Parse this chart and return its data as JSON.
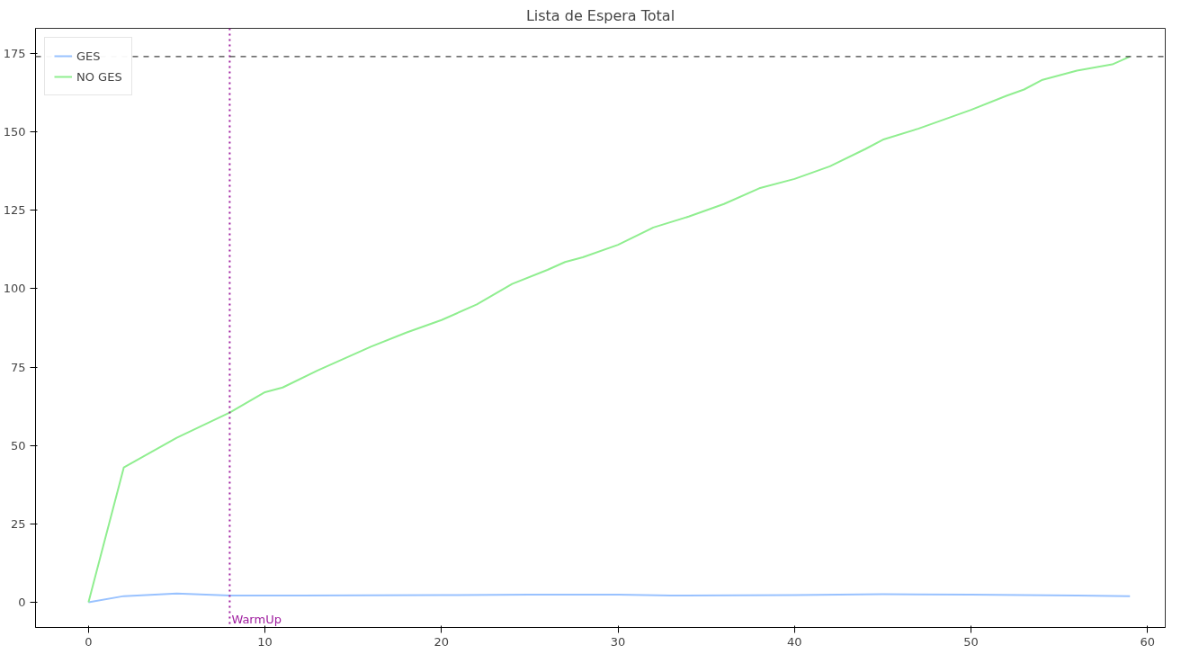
{
  "chart_data": {
    "type": "line",
    "title": "Lista de Espera Total",
    "xlim": [
      -3,
      61
    ],
    "ylim": [
      -8,
      183
    ],
    "xticks": [
      0,
      10,
      20,
      30,
      40,
      50,
      60
    ],
    "yticks": [
      0,
      25,
      50,
      75,
      100,
      125,
      150,
      175
    ],
    "grid": false,
    "legend": "top left",
    "line_style": "solid",
    "marker": "none",
    "series": [
      {
        "name": "GES",
        "color": "#99c2ff",
        "x": [
          0,
          2,
          5,
          8,
          12,
          20,
          25,
          30,
          33,
          40,
          45,
          50,
          56,
          59
        ],
        "values": [
          0,
          2,
          2.8,
          2.2,
          2.2,
          2.3,
          2.5,
          2.5,
          2.2,
          2.3,
          2.6,
          2.5,
          2.2,
          2
        ]
      },
      {
        "name": "NO GES",
        "color": "#90ee90",
        "x": [
          0,
          2,
          5,
          8,
          10,
          11,
          13,
          15,
          16,
          18,
          20,
          22,
          24,
          26,
          27,
          28,
          30,
          32,
          34,
          36,
          38,
          40,
          42,
          44,
          45,
          47,
          50,
          52,
          53,
          54,
          56,
          58,
          59
        ],
        "values": [
          0,
          43,
          52.5,
          60.5,
          67,
          68.5,
          74,
          79,
          81.5,
          86,
          90,
          95,
          101.5,
          106,
          108.5,
          110,
          114,
          119.5,
          123,
          127,
          132,
          135,
          139,
          144.5,
          147.5,
          151,
          157,
          161.5,
          163.5,
          166.5,
          169.5,
          171.5,
          174
        ]
      }
    ],
    "ref_lines": [
      {
        "axis": "x",
        "value": 8,
        "label": "WarmUp",
        "color": "#a020a0",
        "line_style": "dotted"
      },
      {
        "axis": "y",
        "value": 174,
        "label": null,
        "color": "#404040",
        "line_style": "dashed"
      }
    ]
  }
}
